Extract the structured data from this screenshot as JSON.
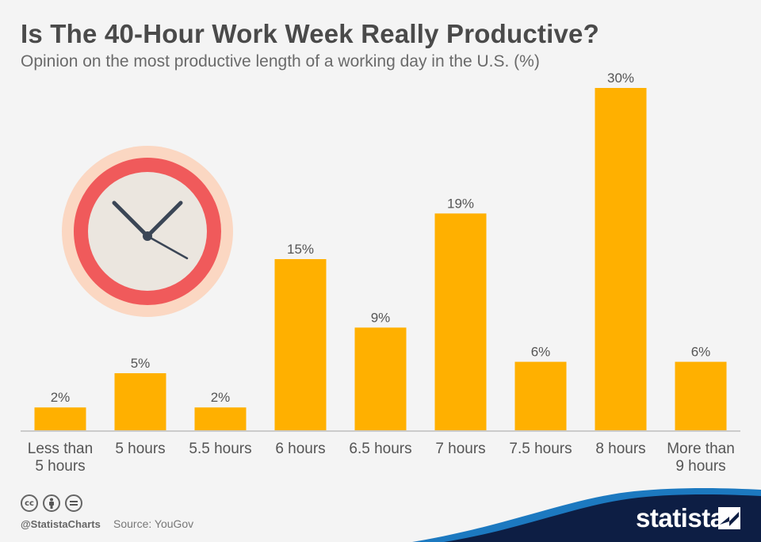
{
  "title": "Is The 40-Hour Work Week Really Productive?",
  "subtitle": "Opinion on the most productive length of a working day in the U.S. (%)",
  "footer": {
    "handle": "@StatistaCharts",
    "source": "Source: YouGov",
    "brand": "statista",
    "icons": [
      "cc-icon",
      "attribution-icon",
      "no-derivatives-icon"
    ]
  },
  "colors": {
    "bar": "#ffb000",
    "clock_outer": "#fbd7c2",
    "clock_ring": "#f05a5b",
    "clock_face": "#ebe6df",
    "clock_hands": "#3b4656",
    "brand_navy": "#0d1e44",
    "brand_blue": "#1c79c0"
  },
  "chart_data": {
    "type": "bar",
    "categories": [
      [
        "Less than",
        "5 hours"
      ],
      [
        "5 hours"
      ],
      [
        "5.5 hours"
      ],
      [
        "6 hours"
      ],
      [
        "6.5 hours"
      ],
      [
        "7 hours"
      ],
      [
        "7.5 hours"
      ],
      [
        "8 hours"
      ],
      [
        "More than",
        "9 hours"
      ]
    ],
    "values": [
      2,
      5,
      2,
      15,
      9,
      19,
      6,
      30,
      6
    ],
    "value_labels": [
      "2%",
      "5%",
      "2%",
      "15%",
      "9%",
      "19%",
      "6%",
      "30%",
      "6%"
    ],
    "unit": "%",
    "ylim": [
      0,
      30
    ],
    "grid": false,
    "legend": "none"
  }
}
